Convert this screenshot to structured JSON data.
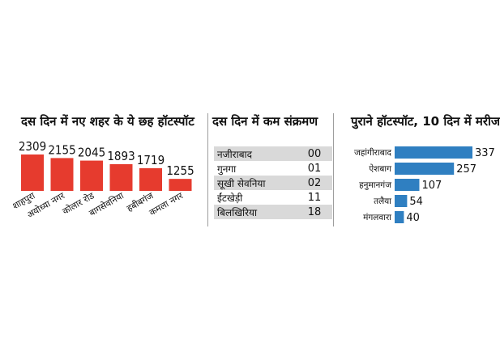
{
  "panels": {
    "new_hotspots": {
      "title": "दस दिन में नए शहर के ये छह हॉटस्पॉट"
    },
    "low_infection": {
      "title": "दस दिन में कम संक्रमण"
    },
    "old_hotspots": {
      "title": "पुराने  हॉटस्पॉट, 10 दिन में मरीज"
    }
  },
  "colors": {
    "red": "#e63b2e",
    "blue": "#2f7fc1",
    "row_shade": "#d9d9d9",
    "divider": "#9e9e9e"
  },
  "chart_data": [
    {
      "type": "bar",
      "title": "दस दिन में नए शहर के ये छह हॉटस्पॉट",
      "categories": [
        "शाहपुरा",
        "अयोध्या नगर",
        "कोलार रोड",
        "बागसेवनिया",
        "हबीबगंज",
        "कमला नगर"
      ],
      "values": [
        2309,
        2155,
        2045,
        1893,
        1719,
        1255
      ],
      "orientation": "vertical",
      "value_labels": true,
      "grid": false,
      "color": "#e63b2e"
    },
    {
      "type": "table",
      "title": "दस दिन में कम संक्रमण",
      "rows": [
        {
          "name": "नजीराबाद",
          "value": "00"
        },
        {
          "name": "गुनगा",
          "value": "01"
        },
        {
          "name": "सूखी सेवनिया",
          "value": "02"
        },
        {
          "name": "ईंटखेड़ी",
          "value": "11"
        },
        {
          "name": "बिलखिरिया",
          "value": "18"
        }
      ],
      "striped": true
    },
    {
      "type": "bar",
      "title": "पुराने  हॉटस्पॉट, 10 दिन में मरीज",
      "categories": [
        "जहांगीराबाद",
        "ऐशबाग",
        "हनुमानगंज",
        "तलैया",
        "मंगलवारा"
      ],
      "values": [
        337,
        257,
        107,
        54,
        40
      ],
      "orientation": "horizontal",
      "value_labels": true,
      "grid": false,
      "color": "#2f7fc1"
    }
  ]
}
